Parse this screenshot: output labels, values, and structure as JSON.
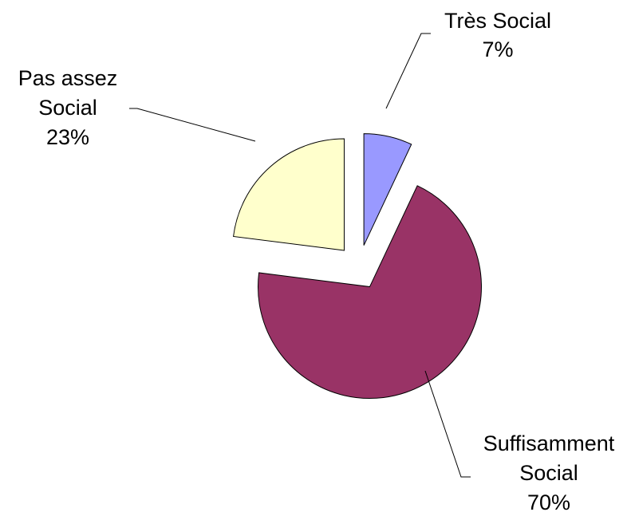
{
  "chart_data": {
    "type": "pie",
    "categories": [
      "Très Social",
      "Suffisamment Social",
      "Pas assez Social"
    ],
    "values": [
      7,
      70,
      23
    ],
    "label_lines": [
      [
        "Très Social",
        "7%"
      ],
      [
        "Suffisamment",
        "Social",
        "70%"
      ],
      [
        "Pas assez",
        "Social",
        "23%"
      ]
    ],
    "colors": [
      "#9999ff",
      "#993366",
      "#ffffcc"
    ],
    "exploded": true,
    "legend": "none"
  }
}
